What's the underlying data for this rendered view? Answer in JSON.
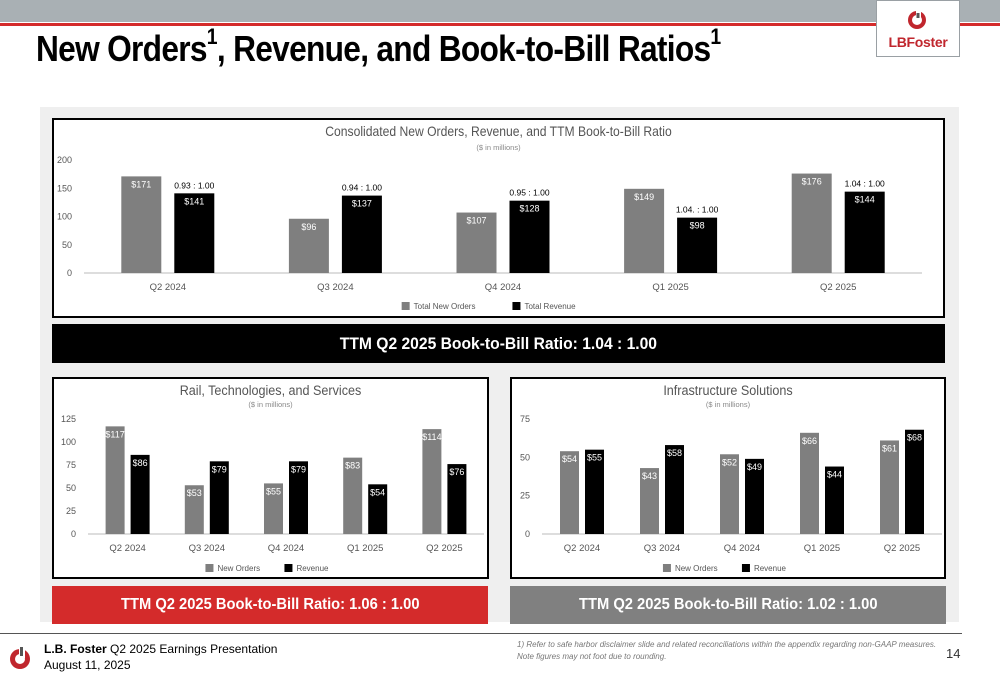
{
  "title": {
    "text": "New Orders",
    "sup1": "1",
    "text2": ", Revenue, and Book-to-Bill Ratios",
    "sup2": "1"
  },
  "logo": {
    "text": "LBFoster"
  },
  "colors": {
    "orders": "#7f7f7f",
    "revenue": "#000000",
    "red": "#d42b2b",
    "gray_banner": "#808080"
  },
  "chart_data": [
    {
      "type": "bar",
      "title": "Consolidated New Orders, Revenue, and TTM Book-to-Bill Ratio",
      "subtitle": "($ in millions)",
      "categories": [
        "Q2 2024",
        "Q3 2024",
        "Q4 2024",
        "Q1 2025",
        "Q2 2025"
      ],
      "series": [
        {
          "name": "Total New Orders",
          "values": [
            171,
            96,
            107,
            149,
            176
          ],
          "labels": [
            "$171",
            "$96",
            "$107",
            "$149",
            "$176"
          ]
        },
        {
          "name": "Total Revenue",
          "values": [
            141,
            137,
            128,
            98,
            144
          ],
          "labels": [
            "$141",
            "$137",
            "$128",
            "$98",
            "$144"
          ]
        }
      ],
      "ratios": [
        "0.93 : 1.00",
        "0.94 : 1.00",
        "0.95 : 1.00",
        "1.04. : 1.00",
        "1.04 : 1.00"
      ],
      "ylim": [
        0,
        200
      ],
      "yticks": [
        0,
        50,
        100,
        150,
        200
      ],
      "legend": "bottom"
    },
    {
      "type": "bar",
      "title": "Rail, Technologies, and Services",
      "subtitle": "($ in millions)",
      "categories": [
        "Q2 2024",
        "Q3 2024",
        "Q4 2024",
        "Q1 2025",
        "Q2 2025"
      ],
      "series": [
        {
          "name": "New Orders",
          "values": [
            117,
            53,
            55,
            83,
            114
          ],
          "labels": [
            "$117",
            "$53",
            "$55",
            "$83",
            "$114"
          ]
        },
        {
          "name": "Revenue",
          "values": [
            86,
            79,
            79,
            54,
            76
          ],
          "labels": [
            "$86",
            "$79",
            "$79",
            "$54",
            "$76"
          ]
        }
      ],
      "ylim": [
        0,
        125
      ],
      "yticks": [
        0,
        25,
        50,
        75,
        100,
        125
      ],
      "legend": "bottom"
    },
    {
      "type": "bar",
      "title": "Infrastructure Solutions",
      "subtitle": "($ in millions)",
      "categories": [
        "Q2 2024",
        "Q3 2024",
        "Q4 2024",
        "Q1 2025",
        "Q2 2025"
      ],
      "series": [
        {
          "name": "New Orders",
          "values": [
            54,
            43,
            52,
            66,
            61
          ],
          "labels": [
            "$54",
            "$43",
            "$52",
            "$66",
            "$61"
          ]
        },
        {
          "name": "Revenue",
          "values": [
            55,
            58,
            49,
            44,
            68
          ],
          "labels": [
            "$55",
            "$58",
            "$49",
            "$44",
            "$68"
          ]
        }
      ],
      "ylim": [
        0,
        75
      ],
      "yticks": [
        0,
        25,
        50,
        75
      ],
      "legend": "bottom"
    }
  ],
  "banners": {
    "consolidated": "TTM Q2 2025 Book-to-Bill Ratio: 1.04 : 1.00",
    "rail": "TTM Q2 2025 Book-to-Bill Ratio: 1.06 : 1.00",
    "infra": "TTM Q2 2025 Book-to-Bill Ratio: 1.02 : 1.00"
  },
  "footer": {
    "company": "L.B. Foster",
    "presentation": "Q2 2025 Earnings Presentation",
    "date": "August 11, 2025",
    "note1": "1) Refer to safe harbor disclaimer slide and related reconciliations within the appendix regarding non-GAAP measures.",
    "note2": "Note figures may not foot due to rounding.",
    "page": "14"
  }
}
